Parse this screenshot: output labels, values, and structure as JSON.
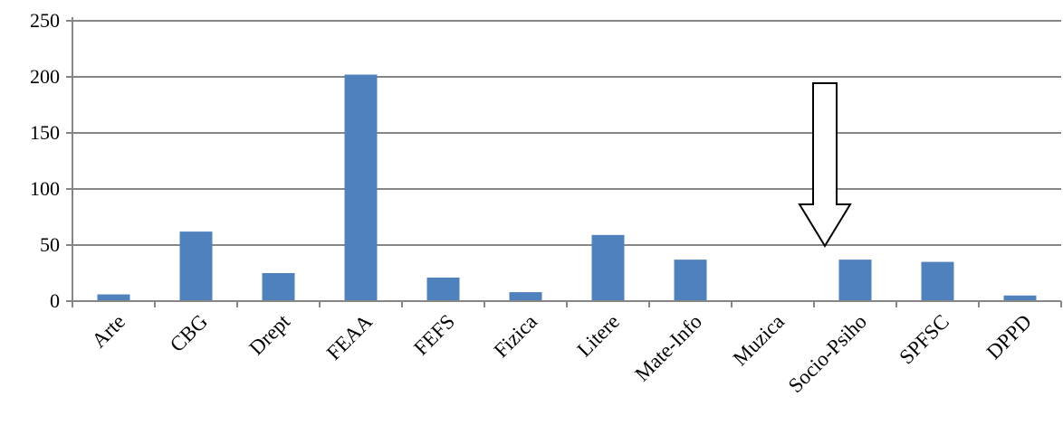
{
  "colors": {
    "bar": "#4f81bd",
    "grid": "#868686",
    "axis": "#868686",
    "arrow_fill": "#ffffff",
    "arrow_stroke": "#000000"
  },
  "chart_data": {
    "type": "bar",
    "title": "",
    "xlabel": "",
    "ylabel": "",
    "ylim": [
      0,
      250
    ],
    "y_ticks": [
      0,
      50,
      100,
      150,
      200,
      250
    ],
    "grid": true,
    "legend": "none",
    "categories": [
      "Arte",
      "CBG",
      "Drept",
      "FEAA",
      "FEFS",
      "Fizica",
      "Litere",
      "Mate-Info",
      "Muzica",
      "Socio-Psiho",
      "SPFSC",
      "DPPD"
    ],
    "values": [
      6,
      62,
      25,
      202,
      21,
      8,
      59,
      37,
      0,
      37,
      35,
      5
    ],
    "annotation": {
      "type": "arrow-down",
      "target_category": "Socio-Psiho"
    }
  }
}
